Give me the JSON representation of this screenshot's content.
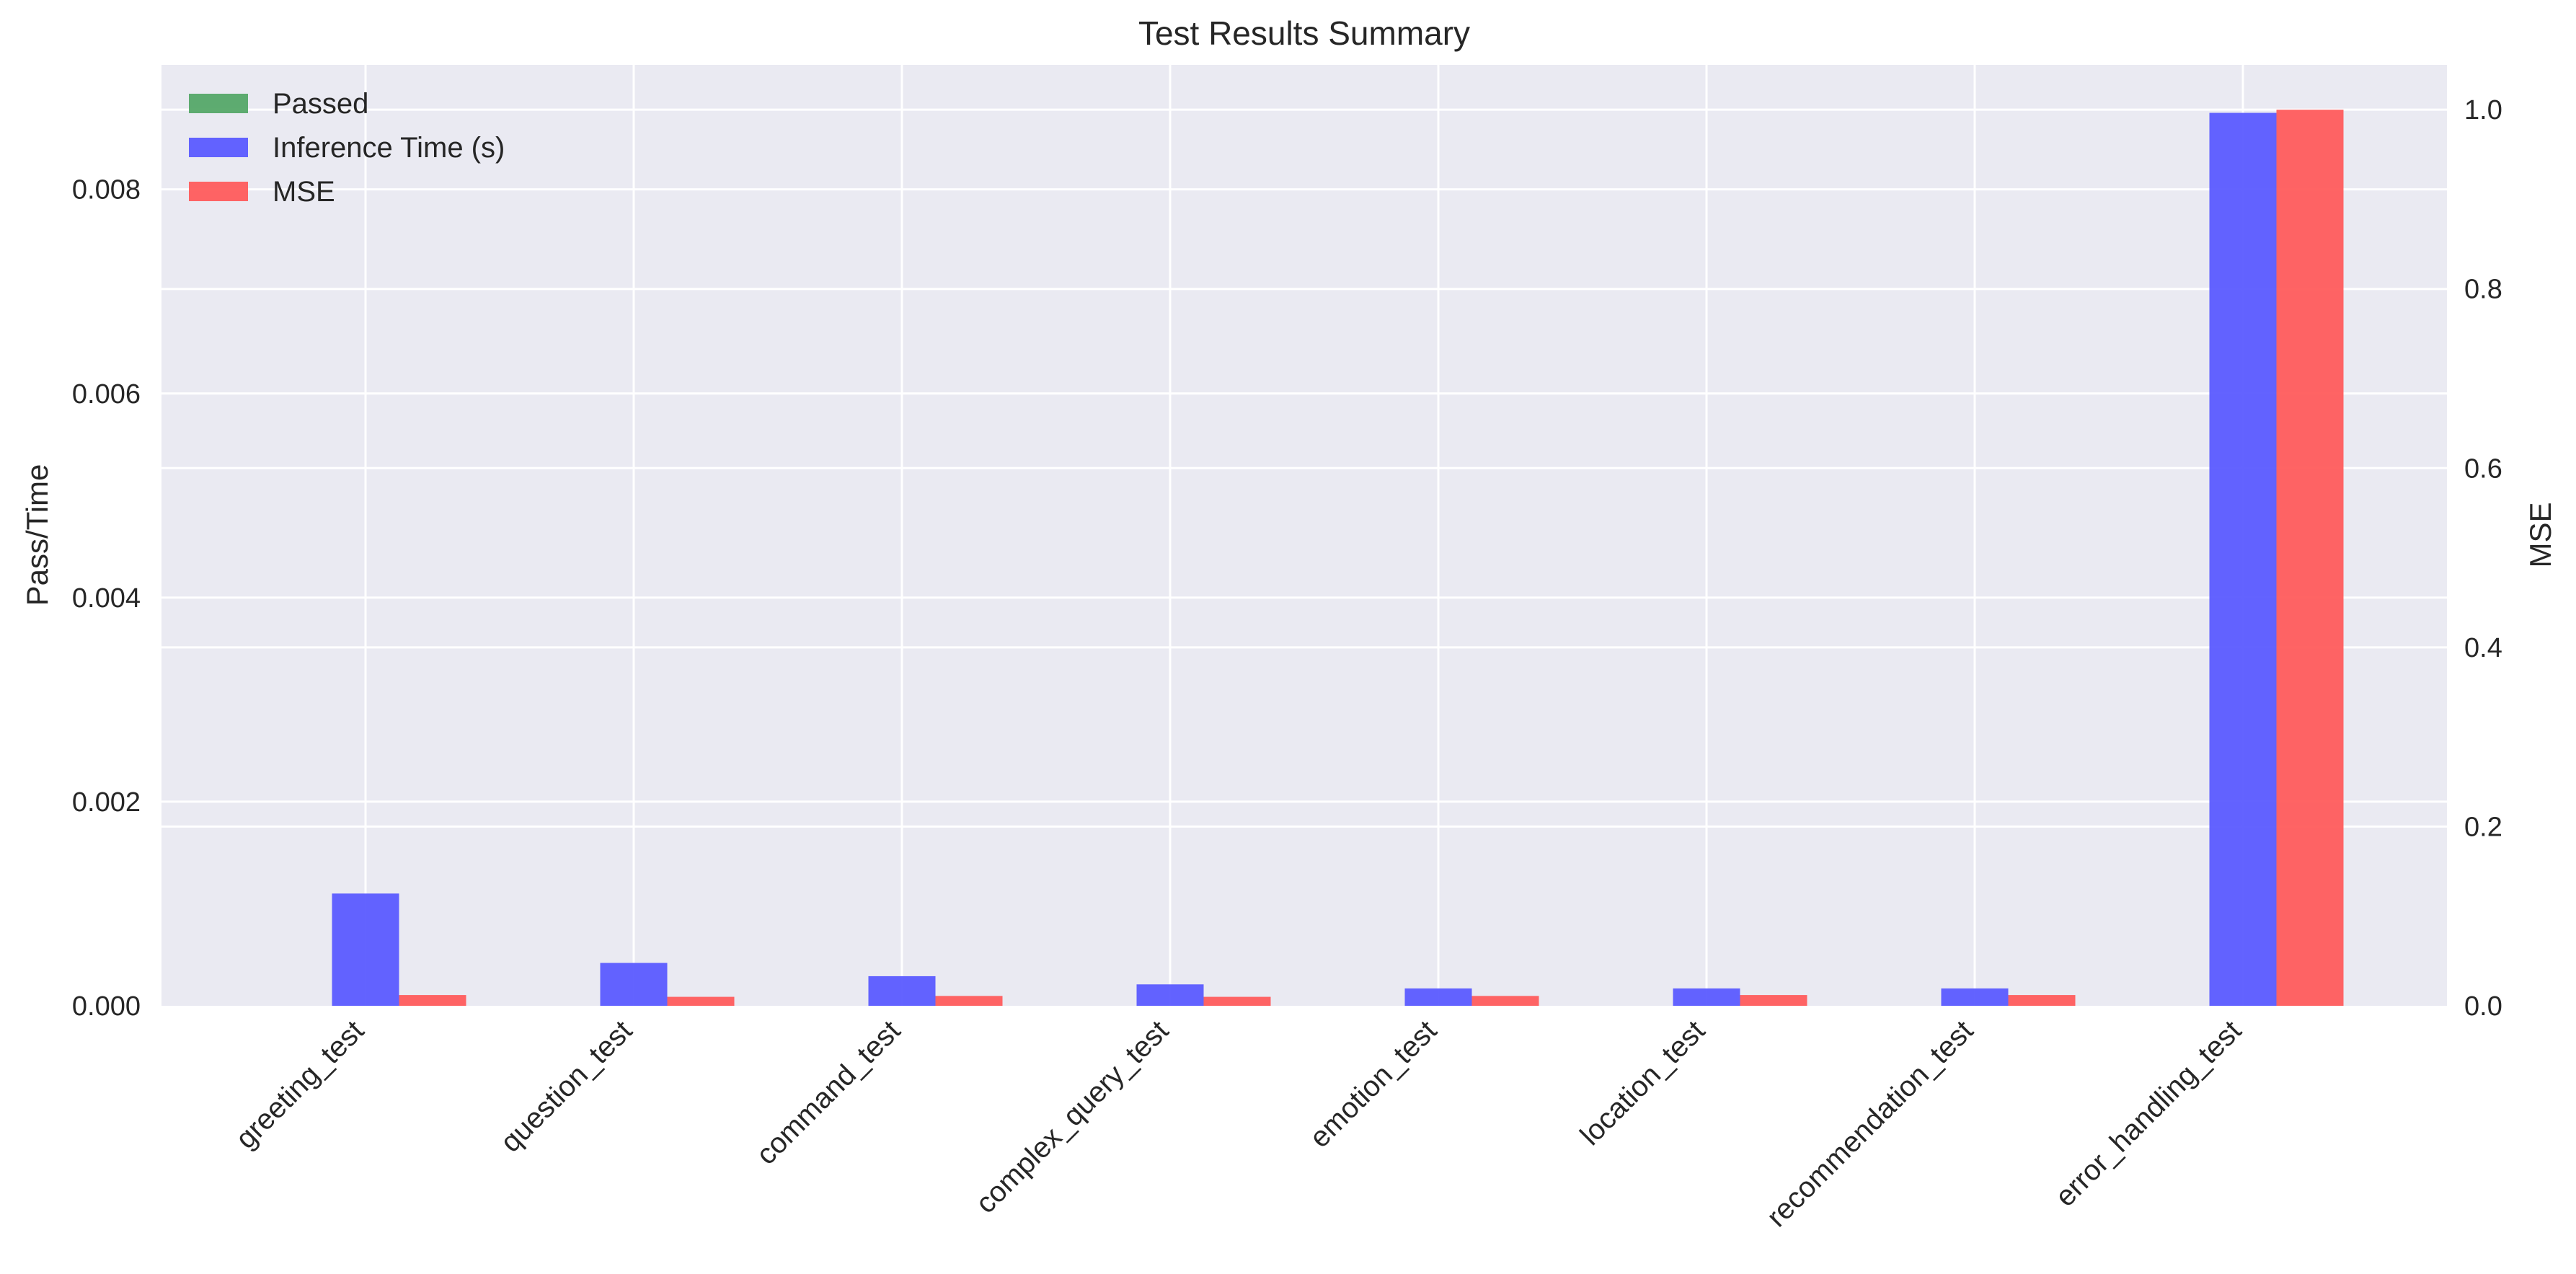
{
  "chart_data": {
    "type": "bar",
    "title": "Test Results Summary",
    "categories": [
      "greeting_test",
      "question_test",
      "command_test",
      "complex_query_test",
      "emotion_test",
      "location_test",
      "recommendation_test",
      "error_handling_test"
    ],
    "ylabel_left": "Pass/Time",
    "ylabel_right": "MSE",
    "ylim_left": [
      0,
      0.00922
    ],
    "ylim_right": [
      0,
      1.05
    ],
    "yticks_left": [
      "0.000",
      "0.002",
      "0.004",
      "0.006",
      "0.008"
    ],
    "yticks_right": [
      "0.0",
      "0.2",
      "0.4",
      "0.6",
      "0.8",
      "1.0"
    ],
    "legend_position": "top-left",
    "grid": true,
    "series": [
      {
        "name": "Passed",
        "axis": "left",
        "color": "#55a868",
        "values": [
          0,
          0,
          0,
          0,
          0,
          0,
          0,
          0
        ]
      },
      {
        "name": "Inference Time (s)",
        "axis": "left",
        "color": "#5b5bff",
        "values": [
          0.0011,
          0.00042,
          0.00029,
          0.00021,
          0.00017,
          0.00017,
          0.00017,
          0.00875
        ]
      },
      {
        "name": "MSE",
        "axis": "right",
        "color": "#ff5c5c",
        "values": [
          0.012,
          0.01,
          0.011,
          0.01,
          0.011,
          0.012,
          0.012,
          1.0
        ]
      }
    ],
    "colors": {
      "background": "#eaeaf2",
      "grid": "#ffffff",
      "text": "#262626"
    }
  }
}
